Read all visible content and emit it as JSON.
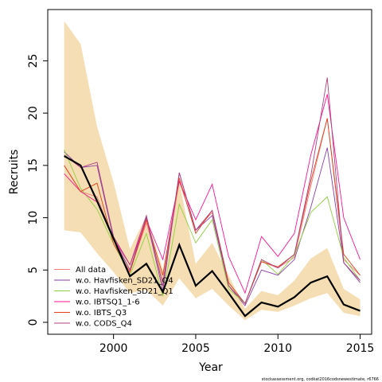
{
  "chart_data": {
    "type": "line",
    "x_label": "Year",
    "y_label": "Recruits",
    "footnote": "stockassessment.org, codkat2016codsnewestimate, r6766",
    "x": [
      1997,
      1998,
      1999,
      2000,
      2001,
      2002,
      2003,
      2004,
      2005,
      2006,
      2007,
      2008,
      2009,
      2010,
      2011,
      2012,
      2013,
      2014,
      2015
    ],
    "band": {
      "color": "#f5deb3",
      "upper": [
        28.8,
        26.6,
        18.7,
        13.4,
        7.0,
        10.2,
        5.0,
        13.4,
        5.6,
        7.6,
        4.5,
        1.3,
        3.0,
        2.6,
        4.0,
        6.1,
        7.1,
        3.2,
        2.2
      ],
      "lower": [
        8.8,
        8.6,
        6.6,
        4.8,
        2.8,
        3.1,
        1.6,
        4.2,
        2.3,
        3.2,
        1.6,
        0.2,
        1.2,
        1.0,
        1.6,
        2.3,
        2.8,
        0.9,
        0.6
      ]
    },
    "series": [
      {
        "name": "All data",
        "color": "#f08080",
        "values": [
          15.0,
          12.5,
          12.0,
          8.0,
          5.0,
          9.5,
          4.0,
          13.5,
          8.8,
          10.5,
          3.5,
          1.8,
          5.8,
          5.2,
          6.2,
          13.0,
          19.5,
          6.0,
          4.5
        ]
      },
      {
        "name": "w.o. Havfisken_SD21_Q4",
        "color": "#8b3fa8",
        "values": [
          16.3,
          14.8,
          15.0,
          8.0,
          5.0,
          10.0,
          3.0,
          14.3,
          8.8,
          10.2,
          3.5,
          1.6,
          5.0,
          4.5,
          6.0,
          11.0,
          16.7,
          5.7,
          3.8
        ]
      },
      {
        "name": "w.o. Havfisken_SD21_Q1",
        "color": "#90d040",
        "values": [
          16.5,
          12.8,
          10.8,
          7.5,
          4.5,
          8.5,
          2.5,
          11.3,
          7.6,
          9.8,
          3.2,
          1.8,
          6.0,
          4.6,
          6.4,
          10.5,
          12.0,
          6.2,
          4.0
        ]
      },
      {
        "name": "w.o. IBTSQ1_1-6",
        "color": "#ff1493",
        "values": [
          14.2,
          12.5,
          11.5,
          8.0,
          5.5,
          9.8,
          6.0,
          13.5,
          9.8,
          13.2,
          6.3,
          2.8,
          8.2,
          6.3,
          8.5,
          16.0,
          21.8,
          10.0,
          6.0
        ]
      },
      {
        "name": "w.o. IBTS_Q3",
        "color": "#e0401a",
        "values": [
          15.0,
          12.5,
          13.3,
          7.5,
          4.8,
          9.8,
          4.5,
          13.8,
          8.5,
          10.7,
          3.8,
          1.8,
          5.8,
          5.3,
          6.5,
          13.5,
          19.5,
          6.5,
          4.5
        ]
      },
      {
        "name": "w.o. CODS_Q4",
        "color": "#b04080",
        "values": [
          16.0,
          14.8,
          15.3,
          8.2,
          5.5,
          10.2,
          3.5,
          14.3,
          8.8,
          10.7,
          3.5,
          1.8,
          6.0,
          5.2,
          6.5,
          14.0,
          23.4,
          5.7,
          4.0
        ]
      },
      {
        "color": "#000000",
        "values": [
          15.9,
          15.0,
          11.6,
          8.0,
          4.4,
          5.6,
          2.9,
          7.4,
          3.5,
          4.9,
          2.8,
          0.6,
          1.9,
          1.5,
          2.4,
          3.8,
          4.4,
          1.7,
          1.1
        ]
      }
    ],
    "xlim": [
      1996,
      2015.7
    ],
    "ylim": [
      -1.14,
      29.9
    ],
    "xticks": [
      2000,
      2005,
      2010,
      2015
    ],
    "yticks": [
      0,
      5,
      10,
      15,
      20,
      25
    ],
    "legend": "bottomleft"
  }
}
